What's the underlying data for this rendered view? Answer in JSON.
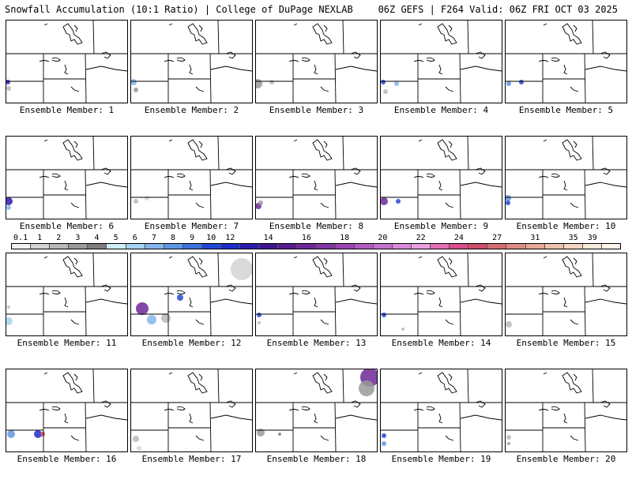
{
  "header": {
    "title_left": "Snowfall Accumulation (10:1 Ratio) | College of DuPage NEXLAB",
    "title_right": "06Z GEFS | F264 Valid: 06Z FRI OCT 03 2025"
  },
  "colorbar": {
    "labels": [
      "0.1",
      "1",
      "2",
      "3",
      "4",
      "5",
      "6",
      "7",
      "8",
      "9",
      "10",
      "12",
      "14",
      "16",
      "18",
      "20",
      "22",
      "24",
      "27",
      "31",
      "35",
      "39"
    ],
    "colors": [
      "#f2f2f2",
      "#d4d4d4",
      "#b8b8b8",
      "#9a9a9a",
      "#7e7e7e",
      "#cdeef5",
      "#a7d4f0",
      "#82b6ec",
      "#5f96e6",
      "#3f73de",
      "#2347d4",
      "#1f2bc8",
      "#2a1bb0",
      "#3e168f",
      "#561e8e",
      "#6d2896",
      "#8435a4",
      "#9b44b2",
      "#b25cc2",
      "#c672cf",
      "#d98adb",
      "#e7a0e2",
      "#e26fb2",
      "#d94e8b",
      "#cc4e6a",
      "#d46e74",
      "#dd8c86",
      "#e6a898",
      "#edc1ad",
      "#f3d7c3",
      "#f8ead8",
      "#fcf5e8"
    ]
  },
  "members": [
    {
      "label": "Ensemble Member: 1"
    },
    {
      "label": "Ensemble Member: 2"
    },
    {
      "label": "Ensemble Member: 3"
    },
    {
      "label": "Ensemble Member: 4"
    },
    {
      "label": "Ensemble Member: 5"
    },
    {
      "label": "Ensemble Member: 6"
    },
    {
      "label": "Ensemble Member: 7"
    },
    {
      "label": "Ensemble Member: 8"
    },
    {
      "label": "Ensemble Member: 9"
    },
    {
      "label": "Ensemble Member: 10"
    },
    {
      "label": "Ensemble Member: 11"
    },
    {
      "label": "Ensemble Member: 12"
    },
    {
      "label": "Ensemble Member: 13"
    },
    {
      "label": "Ensemble Member: 14"
    },
    {
      "label": "Ensemble Member: 15"
    },
    {
      "label": "Ensemble Member: 16"
    },
    {
      "label": "Ensemble Member: 17"
    },
    {
      "label": "Ensemble Member: 18"
    },
    {
      "label": "Ensemble Member: 19"
    },
    {
      "label": "Ensemble Member: 20"
    }
  ]
}
